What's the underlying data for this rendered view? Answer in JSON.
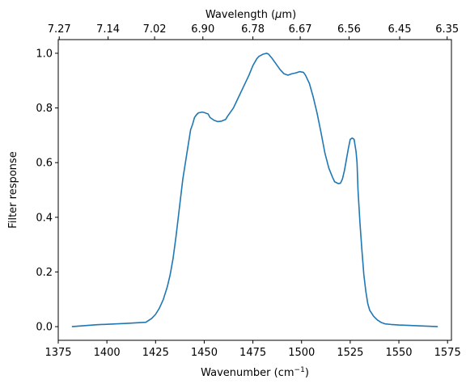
{
  "chart_data": {
    "type": "line",
    "xlabel_prefix": "Wavenumber (cm",
    "xlabel_exp": "−1",
    "xlabel_suffix": ")",
    "ylabel": "Filter response",
    "top_xlabel_prefix": "Wavelength (",
    "top_xlabel_italic": "μ",
    "top_xlabel_suffix": "m)",
    "xlim": [
      1375,
      1577
    ],
    "ylim": [
      -0.05,
      1.05
    ],
    "x_ticks": [
      1375,
      1400,
      1425,
      1450,
      1475,
      1500,
      1525,
      1550,
      1575
    ],
    "y_ticks": [
      0.0,
      0.2,
      0.4,
      0.6,
      0.8,
      1.0
    ],
    "y_tick_labels": [
      "0.0",
      "0.2",
      "0.4",
      "0.6",
      "0.8",
      "1.0"
    ],
    "top_ticks": [
      {
        "label": "7.27",
        "wavenumber": 1375.5
      },
      {
        "label": "7.14",
        "wavenumber": 1400.6
      },
      {
        "label": "7.02",
        "wavenumber": 1424.5
      },
      {
        "label": "6.90",
        "wavenumber": 1449.3
      },
      {
        "label": "6.78",
        "wavenumber": 1475.0
      },
      {
        "label": "6.67",
        "wavenumber": 1499.3
      },
      {
        "label": "6.56",
        "wavenumber": 1524.4
      },
      {
        "label": "6.45",
        "wavenumber": 1550.4
      },
      {
        "label": "6.35",
        "wavenumber": 1574.8
      }
    ],
    "grid": false,
    "series": [
      {
        "color": "#1f77b4",
        "x": [
          1382,
          1395,
          1410,
          1420,
          1423,
          1425,
          1427,
          1429,
          1431,
          1432.5,
          1434,
          1435.5,
          1437,
          1439,
          1441,
          1443,
          1444,
          1445,
          1446,
          1447,
          1449,
          1450,
          1452,
          1453,
          1455,
          1457,
          1459,
          1461,
          1462,
          1465,
          1467,
          1470,
          1473,
          1475,
          1477,
          1478,
          1480,
          1482,
          1483,
          1485,
          1487,
          1489,
          1491,
          1493,
          1495,
          1497,
          1499,
          1501,
          1502,
          1504,
          1506,
          1508,
          1510,
          1512,
          1514,
          1516,
          1517,
          1519,
          1520,
          1521,
          1522,
          1523,
          1524,
          1525,
          1526,
          1527,
          1528,
          1528.5,
          1529,
          1530,
          1531,
          1532,
          1533,
          1534,
          1535,
          1537,
          1539,
          1541,
          1543,
          1546,
          1550,
          1560,
          1570
        ],
        "y": [
          0.0,
          0.007,
          0.012,
          0.016,
          0.03,
          0.045,
          0.068,
          0.1,
          0.145,
          0.19,
          0.25,
          0.33,
          0.42,
          0.54,
          0.63,
          0.72,
          0.74,
          0.765,
          0.775,
          0.782,
          0.785,
          0.783,
          0.778,
          0.765,
          0.755,
          0.75,
          0.752,
          0.758,
          0.77,
          0.8,
          0.83,
          0.875,
          0.92,
          0.955,
          0.98,
          0.988,
          0.996,
          1.0,
          0.997,
          0.98,
          0.96,
          0.94,
          0.925,
          0.92,
          0.925,
          0.928,
          0.933,
          0.93,
          0.92,
          0.89,
          0.84,
          0.78,
          0.71,
          0.635,
          0.58,
          0.545,
          0.53,
          0.523,
          0.525,
          0.54,
          0.57,
          0.61,
          0.65,
          0.685,
          0.69,
          0.685,
          0.64,
          0.6,
          0.5,
          0.38,
          0.28,
          0.19,
          0.13,
          0.085,
          0.06,
          0.038,
          0.024,
          0.015,
          0.01,
          0.008,
          0.006,
          0.003,
          0.0
        ]
      }
    ]
  }
}
